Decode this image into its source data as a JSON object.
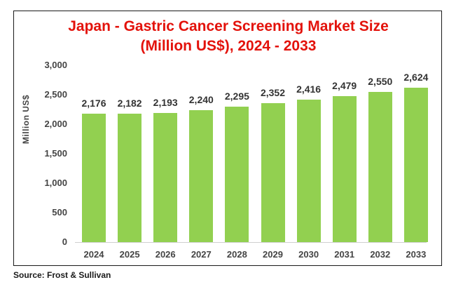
{
  "chart_data": {
    "type": "bar",
    "title": "Japan - Gastric Cancer Screening Market Size (Million US$), 2024 - 2033",
    "title_lines": [
      "Japan - Gastric Cancer Screening Market Size",
      "(Million US$), 2024 - 2033"
    ],
    "categories": [
      "2024",
      "2025",
      "2026",
      "2027",
      "2028",
      "2029",
      "2030",
      "2031",
      "2032",
      "2033"
    ],
    "values": [
      2176,
      2182,
      2193,
      2240,
      2295,
      2352,
      2416,
      2479,
      2550,
      2624
    ],
    "value_labels": [
      "2,176",
      "2,182",
      "2,193",
      "2,240",
      "2,295",
      "2,352",
      "2,416",
      "2,479",
      "2,550",
      "2,624"
    ],
    "xlabel": "",
    "ylabel": "Million US$",
    "ylim": [
      0,
      3000
    ],
    "yticks": [
      "0",
      "500",
      "1,000",
      "1,500",
      "2,000",
      "2,500",
      "3,000"
    ],
    "grid": false,
    "legend": "none",
    "bar_color": "#92d050",
    "title_color": "#e3120b"
  },
  "source": "Source: Frost & Sullivan"
}
